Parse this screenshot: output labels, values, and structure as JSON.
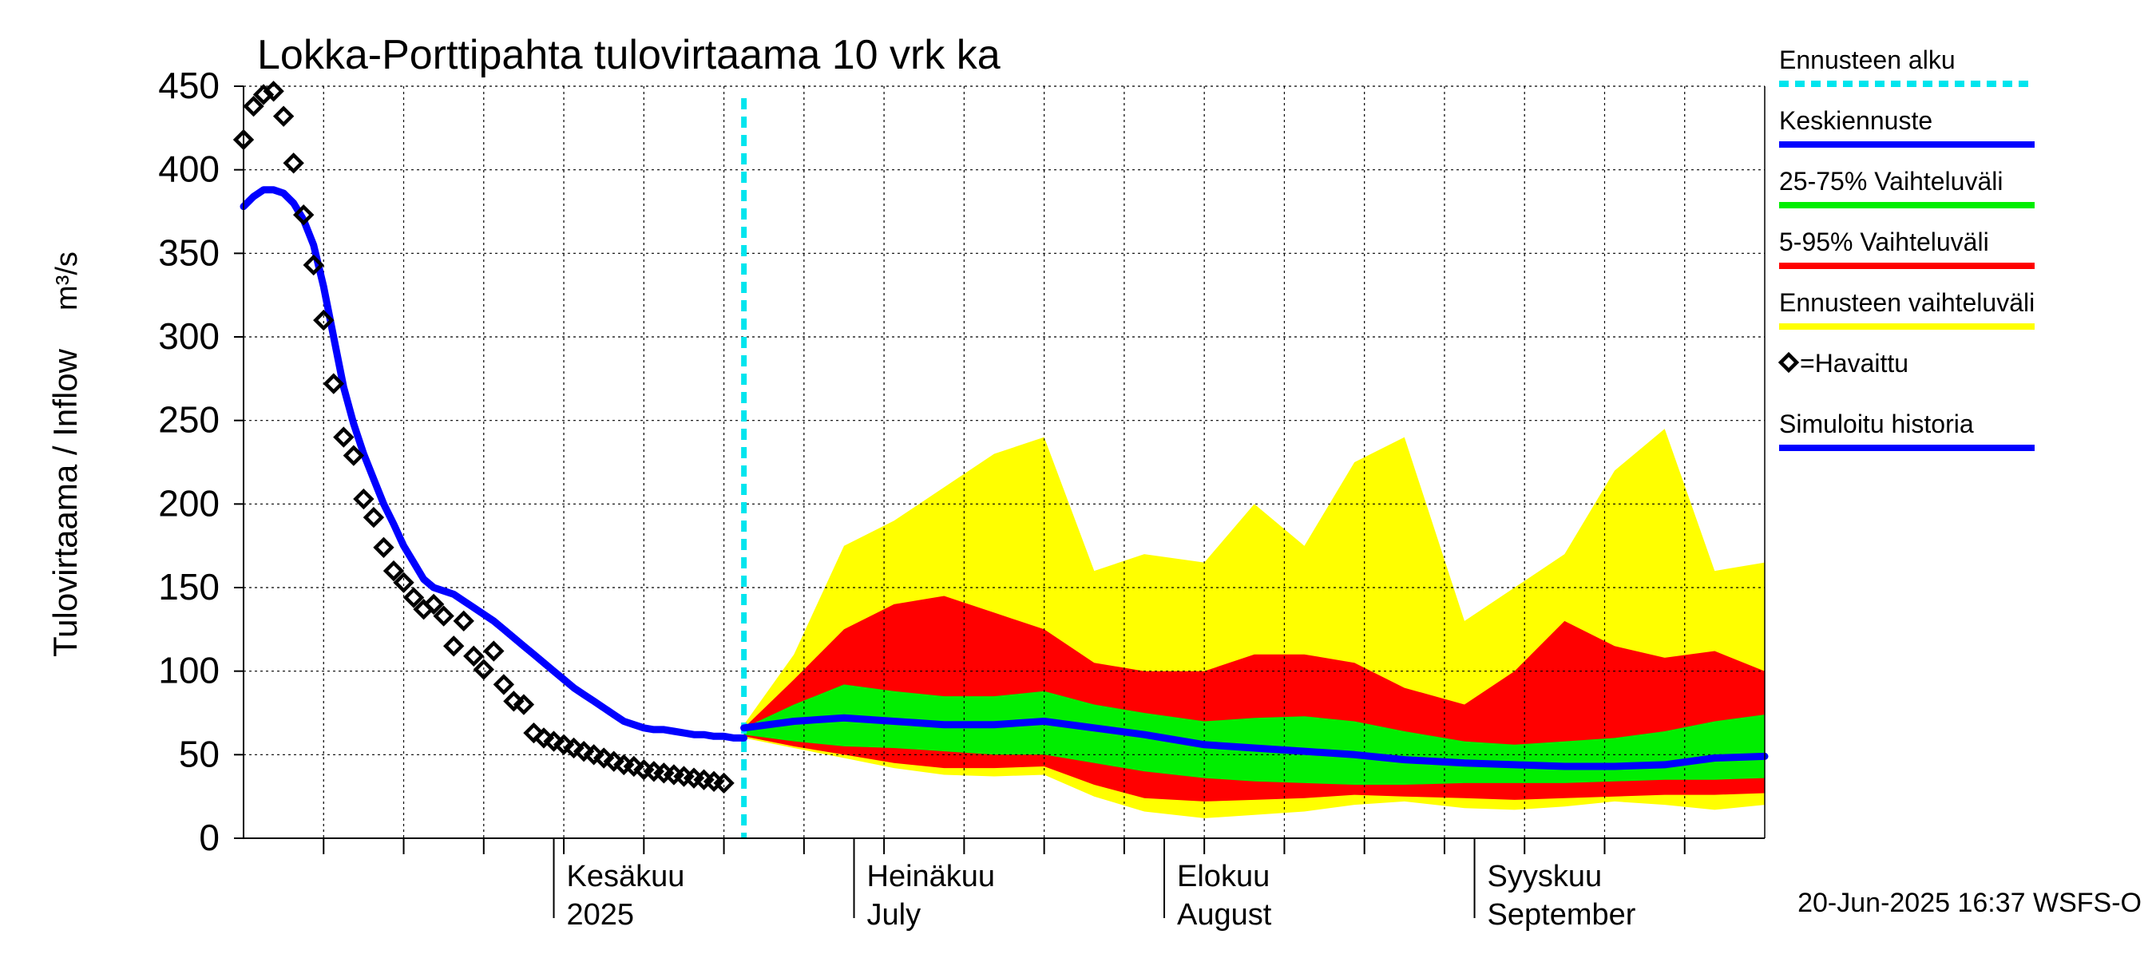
{
  "chart_data": {
    "type": "area",
    "title": "Lokka-Porttipahta tulovirtaama 10 vrk ka",
    "ylabel": "Tulovirtaama / Inflow",
    "yunit": "m³/s",
    "ylim": [
      0,
      450
    ],
    "yticks": [
      0,
      50,
      100,
      150,
      200,
      250,
      300,
      350,
      400,
      450
    ],
    "xlim": [
      "2025-05-01",
      "2025-09-30"
    ],
    "grid": true,
    "month_labels": [
      {
        "date": "2025-06-01",
        "line1": "Kesäkuu",
        "line2": "2025"
      },
      {
        "date": "2025-07-01",
        "line1": "Heinäkuu",
        "line2": "July"
      },
      {
        "date": "2025-08-01",
        "line1": "Elokuu",
        "line2": "August"
      },
      {
        "date": "2025-09-01",
        "line1": "Syyskuu",
        "line2": "September"
      }
    ],
    "forecast_start": "2025-06-20",
    "footer": "20-Jun-2025 16:37 WSFS-O",
    "colors": {
      "forecast_start": "#00e5ee",
      "mean_forecast": "#0000ff",
      "range_25_75": "#00ee00",
      "range_5_95": "#ff0000",
      "range_full": "#ffff00",
      "observed": "#000000",
      "simulated": "#0000ff",
      "grid": "#000000"
    },
    "legend": [
      {
        "label": "Ennusteen alku",
        "style": "dashed",
        "color": "#00e5ee"
      },
      {
        "label": "Keskiennuste",
        "style": "line",
        "color": "#0000ff"
      },
      {
        "label": "25-75% Vaihteluväli",
        "style": "line",
        "color": "#00ee00"
      },
      {
        "label": "5-95% Vaihteluväli",
        "style": "line",
        "color": "#ff0000"
      },
      {
        "label": "Ennusteen vaihteluväli",
        "style": "line",
        "color": "#ffff00"
      },
      {
        "label": "=Havaittu",
        "style": "diamond",
        "color": "#000000"
      },
      {
        "label": "Simuloitu historia",
        "style": "line",
        "color": "#0000ff"
      }
    ],
    "series": [
      {
        "name": "Simuloitu historia",
        "x": [
          "2025-05-01",
          "2025-05-02",
          "2025-05-03",
          "2025-05-04",
          "2025-05-05",
          "2025-05-06",
          "2025-05-07",
          "2025-05-08",
          "2025-05-09",
          "2025-05-10",
          "2025-05-11",
          "2025-05-12",
          "2025-05-13",
          "2025-05-14",
          "2025-05-15",
          "2025-05-16",
          "2025-05-17",
          "2025-05-18",
          "2025-05-19",
          "2025-05-20",
          "2025-05-21",
          "2025-05-22",
          "2025-05-23",
          "2025-05-24",
          "2025-05-25",
          "2025-05-26",
          "2025-05-27",
          "2025-05-28",
          "2025-05-29",
          "2025-05-30",
          "2025-05-31",
          "2025-06-01",
          "2025-06-02",
          "2025-06-03",
          "2025-06-04",
          "2025-06-05",
          "2025-06-06",
          "2025-06-07",
          "2025-06-08",
          "2025-06-09",
          "2025-06-10",
          "2025-06-11",
          "2025-06-12",
          "2025-06-13",
          "2025-06-14",
          "2025-06-15",
          "2025-06-16",
          "2025-06-17",
          "2025-06-18",
          "2025-06-19",
          "2025-06-20"
        ],
        "values": [
          378,
          384,
          388,
          388,
          386,
          380,
          370,
          355,
          330,
          300,
          270,
          248,
          230,
          215,
          200,
          188,
          175,
          165,
          155,
          150,
          148,
          146,
          142,
          138,
          134,
          130,
          125,
          120,
          115,
          110,
          105,
          100,
          95,
          90,
          86,
          82,
          78,
          74,
          70,
          68,
          66,
          65,
          65,
          64,
          63,
          62,
          62,
          61,
          61,
          60,
          60
        ]
      },
      {
        "name": "Keskiennuste",
        "x": [
          "2025-06-20",
          "2025-06-25",
          "2025-06-30",
          "2025-07-05",
          "2025-07-10",
          "2025-07-15",
          "2025-07-20",
          "2025-07-25",
          "2025-07-30",
          "2025-08-05",
          "2025-08-10",
          "2025-08-15",
          "2025-08-20",
          "2025-08-25",
          "2025-08-31",
          "2025-09-05",
          "2025-09-10",
          "2025-09-15",
          "2025-09-20",
          "2025-09-25",
          "2025-09-30"
        ],
        "values": [
          66,
          70,
          72,
          70,
          68,
          68,
          70,
          66,
          62,
          56,
          54,
          52,
          50,
          47,
          45,
          44,
          43,
          43,
          44,
          48,
          49
        ]
      }
    ],
    "bands": [
      {
        "name": "Ennusteen vaihteluväli",
        "x": [
          "2025-06-20",
          "2025-06-25",
          "2025-06-30",
          "2025-07-05",
          "2025-07-10",
          "2025-07-15",
          "2025-07-20",
          "2025-07-25",
          "2025-07-30",
          "2025-08-05",
          "2025-08-10",
          "2025-08-15",
          "2025-08-20",
          "2025-08-25",
          "2025-08-31",
          "2025-09-05",
          "2025-09-10",
          "2025-09-15",
          "2025-09-20",
          "2025-09-25",
          "2025-09-30"
        ],
        "low": [
          60,
          54,
          48,
          42,
          38,
          37,
          38,
          25,
          16,
          12,
          14,
          16,
          20,
          22,
          18,
          17,
          19,
          22,
          20,
          17,
          20
        ],
        "high": [
          68,
          110,
          175,
          190,
          210,
          230,
          240,
          160,
          170,
          165,
          200,
          175,
          225,
          240,
          130,
          150,
          170,
          220,
          245,
          160,
          165
        ]
      },
      {
        "name": "5-95% Vaihteluväli",
        "x": [
          "2025-06-20",
          "2025-06-25",
          "2025-06-30",
          "2025-07-05",
          "2025-07-10",
          "2025-07-15",
          "2025-07-20",
          "2025-07-25",
          "2025-07-30",
          "2025-08-05",
          "2025-08-10",
          "2025-08-15",
          "2025-08-20",
          "2025-08-25",
          "2025-08-31",
          "2025-09-05",
          "2025-09-10",
          "2025-09-15",
          "2025-09-20",
          "2025-09-25",
          "2025-09-30"
        ],
        "low": [
          61,
          55,
          50,
          45,
          42,
          42,
          43,
          32,
          24,
          22,
          23,
          24,
          26,
          25,
          24,
          23,
          24,
          25,
          26,
          26,
          27
        ],
        "high": [
          66,
          95,
          125,
          140,
          145,
          135,
          125,
          105,
          100,
          100,
          110,
          110,
          105,
          90,
          80,
          100,
          130,
          115,
          108,
          112,
          100
        ]
      },
      {
        "name": "25-75% Vaihteluväli",
        "x": [
          "2025-06-20",
          "2025-06-25",
          "2025-06-30",
          "2025-07-05",
          "2025-07-10",
          "2025-07-15",
          "2025-07-20",
          "2025-07-25",
          "2025-07-30",
          "2025-08-05",
          "2025-08-10",
          "2025-08-15",
          "2025-08-20",
          "2025-08-25",
          "2025-08-31",
          "2025-09-05",
          "2025-09-10",
          "2025-09-15",
          "2025-09-20",
          "2025-09-25",
          "2025-09-30"
        ],
        "low": [
          62,
          58,
          55,
          54,
          52,
          50,
          50,
          45,
          40,
          36,
          34,
          33,
          32,
          32,
          33,
          33,
          33,
          34,
          35,
          35,
          36
        ],
        "high": [
          66,
          80,
          92,
          88,
          85,
          85,
          88,
          80,
          75,
          70,
          72,
          73,
          70,
          64,
          58,
          56,
          58,
          60,
          64,
          70,
          74
        ]
      }
    ],
    "observed": {
      "name": "Havaittu",
      "x": [
        "2025-05-01",
        "2025-05-02",
        "2025-05-03",
        "2025-05-04",
        "2025-05-05",
        "2025-05-06",
        "2025-05-07",
        "2025-05-08",
        "2025-05-09",
        "2025-05-10",
        "2025-05-11",
        "2025-05-12",
        "2025-05-13",
        "2025-05-14",
        "2025-05-15",
        "2025-05-16",
        "2025-05-17",
        "2025-05-18",
        "2025-05-19",
        "2025-05-20",
        "2025-05-21",
        "2025-05-22",
        "2025-05-23",
        "2025-05-24",
        "2025-05-25",
        "2025-05-26",
        "2025-05-27",
        "2025-05-28",
        "2025-05-29",
        "2025-05-30",
        "2025-05-31",
        "2025-06-01",
        "2025-06-02",
        "2025-06-03",
        "2025-06-04",
        "2025-06-05",
        "2025-06-06",
        "2025-06-07",
        "2025-06-08",
        "2025-06-09",
        "2025-06-10",
        "2025-06-11",
        "2025-06-12",
        "2025-06-13",
        "2025-06-14",
        "2025-06-15",
        "2025-06-16",
        "2025-06-17",
        "2025-06-18"
      ],
      "values": [
        418,
        438,
        445,
        447,
        432,
        404,
        373,
        343,
        310,
        272,
        240,
        229,
        203,
        192,
        174,
        160,
        153,
        144,
        137,
        140,
        133,
        115,
        130,
        109,
        101,
        112,
        92,
        82,
        80,
        63,
        60,
        58,
        56,
        54,
        52,
        50,
        48,
        46,
        44,
        43,
        41,
        40,
        39,
        38,
        37,
        36,
        35,
        34,
        33
      ]
    }
  }
}
